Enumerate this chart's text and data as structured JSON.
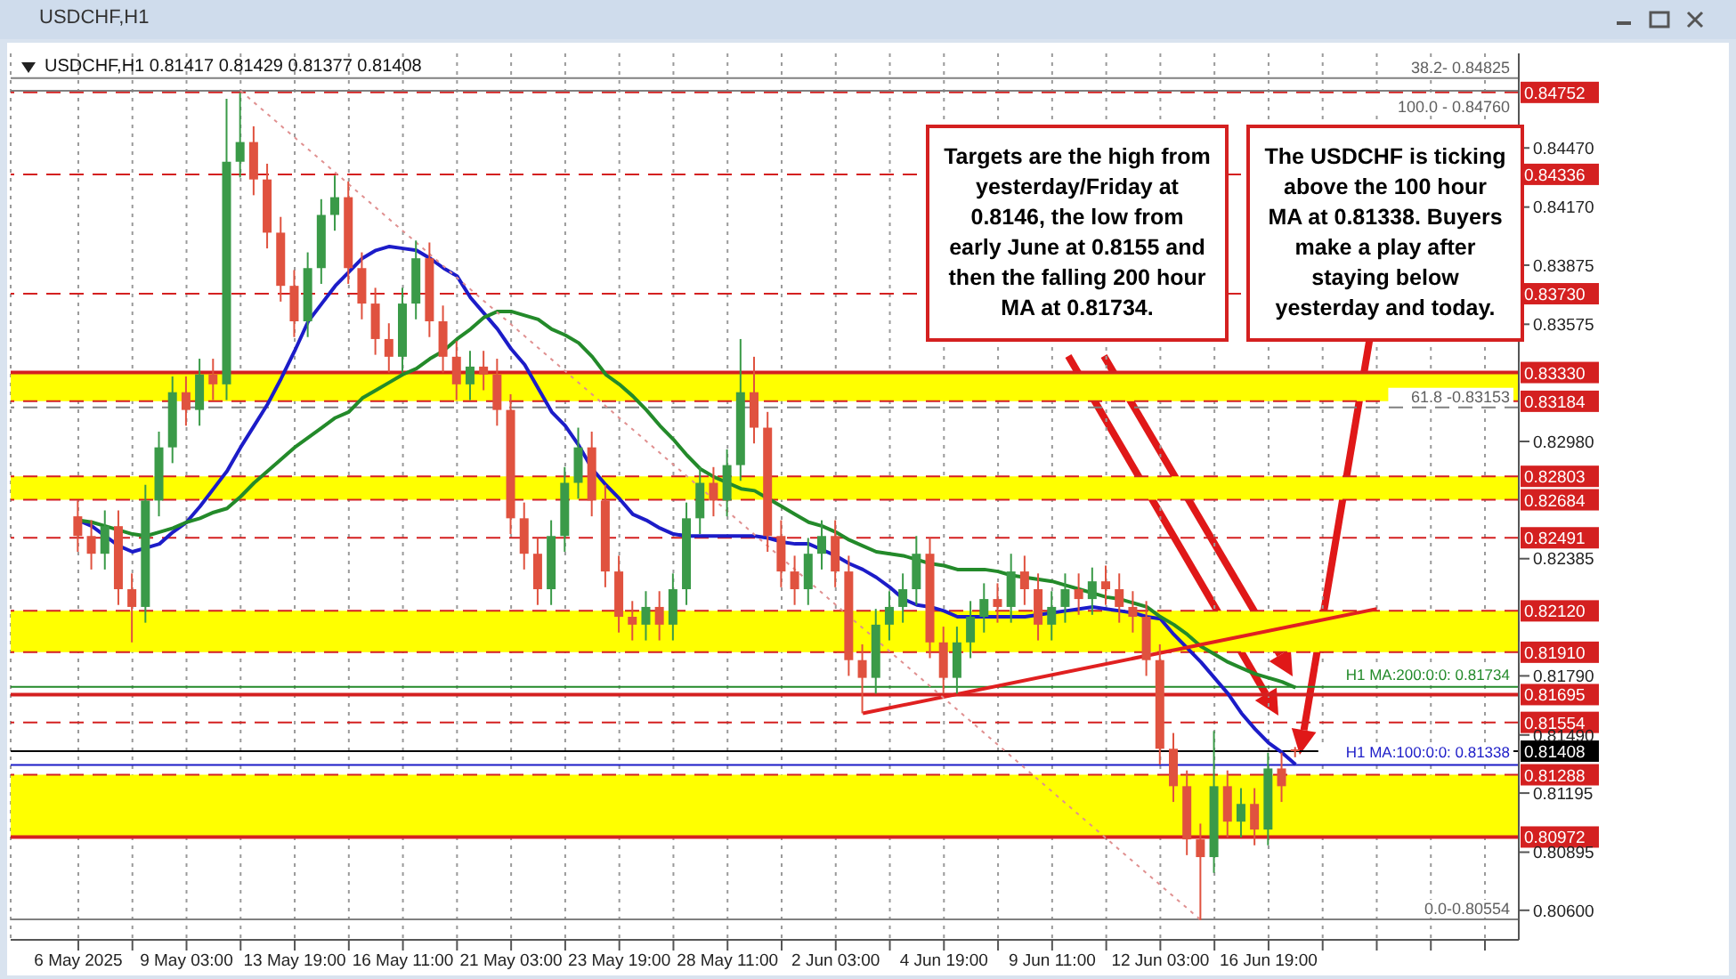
{
  "chart_data": {
    "type": "candlestick",
    "title": "USDCHF,H1 0.81417 0.81429 0.81377 0.81408",
    "subtitle": "USDCHF,H1",
    "categories": [
      "6 May 2025",
      null,
      null,
      null,
      null,
      null,
      null,
      null,
      "9 May 03:00",
      null,
      null,
      null,
      null,
      null,
      null,
      null,
      "13 May 19:00",
      null,
      null,
      null,
      null,
      null,
      null,
      null,
      "16 May 11:00",
      null,
      null,
      null,
      null,
      null,
      null,
      null,
      "21 May 03:00",
      null,
      null,
      null,
      null,
      null,
      null,
      null,
      "23 May 19:00",
      null,
      null,
      null,
      null,
      null,
      null,
      null,
      "28 May 11:00",
      null,
      null,
      null,
      null,
      null,
      null,
      null,
      "2 Jun 03:00",
      null,
      null,
      null,
      null,
      null,
      null,
      null,
      "4 Jun 19:00",
      null,
      null,
      null,
      null,
      null,
      null,
      null,
      "9 Jun 11:00",
      null,
      null,
      null,
      null,
      null,
      null,
      null,
      "12 Jun 03:00",
      null,
      null,
      null,
      null,
      null,
      null,
      null,
      "16 Jun 19:00",
      null,
      null,
      null,
      null,
      null,
      null,
      null,
      null,
      null,
      null,
      null,
      null,
      null,
      null,
      null,
      null,
      null,
      null
    ],
    "series": [
      {
        "colors": [
          "#e0523f",
          "#e0523f",
          "#3a9a48",
          "#e0523f",
          "#e0523f",
          "#3a9a48",
          "#3a9a48",
          "#3a9a48",
          "#e0523f",
          "#3a9a48",
          "#e0523f",
          "#3a9a48",
          "#3a9a48",
          "#e0523f",
          "#e0523f",
          "#e0523f",
          "#e0523f",
          "#3a9a48",
          "#3a9a48",
          "#3a9a48",
          "#e0523f",
          "#e0523f",
          "#e0523f",
          "#e0523f",
          "#3a9a48",
          "#3a9a48",
          "#e0523f",
          "#e0523f",
          "#e0523f",
          "#3a9a48",
          "#e0523f",
          "#e0523f",
          "#e0523f",
          "#e0523f",
          "#e0523f",
          "#3a9a48",
          "#3a9a48",
          "#3a9a48",
          "#e0523f",
          "#e0523f",
          "#e0523f",
          "#e0523f",
          "#3a9a48",
          "#e0523f",
          "#3a9a48",
          "#3a9a48",
          "#3a9a48",
          "#e0523f",
          "#3a9a48",
          "#3a9a48",
          "#e0523f",
          "#e0523f",
          "#e0523f",
          "#e0523f",
          "#3a9a48",
          "#3a9a48",
          "#e0523f",
          "#e0523f",
          "#e0523f",
          "#3a9a48",
          "#3a9a48",
          "#3a9a48",
          "#3a9a48",
          "#e0523f",
          "#e0523f",
          "#3a9a48",
          "#3a9a48",
          "#3a9a48",
          "#e0523f",
          "#3a9a48",
          "#e0523f",
          "#e0523f",
          "#3a9a48",
          "#3a9a48",
          "#e0523f",
          "#3a9a48",
          "#e0523f",
          "#e0523f",
          "#e0523f",
          "#e0523f",
          "#e0523f",
          "#e0523f",
          "#e0523f",
          "#e0523f",
          "#3a9a48",
          "#e0523f",
          "#3a9a48",
          "#e0523f",
          "#3a9a48",
          "#e0523f",
          "#e0523f",
          null,
          null,
          null,
          null,
          null,
          null,
          null,
          null,
          null,
          null,
          null,
          null,
          null,
          null,
          null,
          null
        ],
        "ohlc": [
          [
            0.826,
            0.8268,
            0.8242,
            0.825
          ],
          [
            0.825,
            0.8258,
            0.8233,
            0.8241
          ],
          [
            0.8241,
            0.8263,
            0.8233,
            0.8255
          ],
          [
            0.8255,
            0.8263,
            0.8215,
            0.8223
          ],
          [
            0.8223,
            0.8231,
            0.8196,
            0.8214
          ],
          [
            0.8214,
            0.8276,
            0.8206,
            0.8268
          ],
          [
            0.8268,
            0.8303,
            0.826,
            0.8295
          ],
          [
            0.8295,
            0.8331,
            0.8287,
            0.8323
          ],
          [
            0.8323,
            0.8331,
            0.8306,
            0.8314
          ],
          [
            0.8314,
            0.834,
            0.8306,
            0.8332
          ],
          [
            0.8332,
            0.834,
            0.8319,
            0.8327
          ],
          [
            0.8327,
            0.8472,
            0.8319,
            0.844
          ],
          [
            0.844,
            0.8475,
            0.8432,
            0.845
          ],
          [
            0.845,
            0.8458,
            0.8423,
            0.8431
          ],
          [
            0.8431,
            0.8439,
            0.8396,
            0.8404
          ],
          [
            0.8404,
            0.8412,
            0.8369,
            0.8377
          ],
          [
            0.8377,
            0.8385,
            0.8351,
            0.8359
          ],
          [
            0.8359,
            0.8394,
            0.8351,
            0.8386
          ],
          [
            0.8386,
            0.8421,
            0.8378,
            0.8413
          ],
          [
            0.8413,
            0.8433,
            0.8405,
            0.8422
          ],
          [
            0.8422,
            0.843,
            0.8378,
            0.8386
          ],
          [
            0.8386,
            0.8394,
            0.836,
            0.8368
          ],
          [
            0.8368,
            0.8376,
            0.8342,
            0.835
          ],
          [
            0.835,
            0.8358,
            0.8333,
            0.8341
          ],
          [
            0.8341,
            0.8376,
            0.8333,
            0.8368
          ],
          [
            0.8368,
            0.84,
            0.836,
            0.8391
          ],
          [
            0.8391,
            0.8399,
            0.8351,
            0.8359
          ],
          [
            0.8359,
            0.8367,
            0.8333,
            0.8341
          ],
          [
            0.8341,
            0.8349,
            0.8319,
            0.8327
          ],
          [
            0.8327,
            0.8344,
            0.8319,
            0.8336
          ],
          [
            0.8336,
            0.8344,
            0.8324,
            0.8332
          ],
          [
            0.8332,
            0.834,
            0.8306,
            0.8314
          ],
          [
            0.8314,
            0.8322,
            0.8251,
            0.8259
          ],
          [
            0.8259,
            0.8267,
            0.8233,
            0.8241
          ],
          [
            0.8241,
            0.8249,
            0.8215,
            0.8223
          ],
          [
            0.8223,
            0.8258,
            0.8215,
            0.825
          ],
          [
            0.825,
            0.8285,
            0.8242,
            0.8277
          ],
          [
            0.8277,
            0.8305,
            0.8269,
            0.8295
          ],
          [
            0.8295,
            0.8303,
            0.826,
            0.8268
          ],
          [
            0.8268,
            0.8276,
            0.8224,
            0.8232
          ],
          [
            0.8232,
            0.824,
            0.8201,
            0.8209
          ],
          [
            0.8209,
            0.8217,
            0.8197,
            0.8205
          ],
          [
            0.8205,
            0.8222,
            0.8197,
            0.8214
          ],
          [
            0.8214,
            0.8222,
            0.8197,
            0.8205
          ],
          [
            0.8205,
            0.8231,
            0.8197,
            0.8223
          ],
          [
            0.8223,
            0.8267,
            0.8215,
            0.8259
          ],
          [
            0.8259,
            0.8285,
            0.8251,
            0.8277
          ],
          [
            0.8277,
            0.8285,
            0.826,
            0.8268
          ],
          [
            0.8268,
            0.8294,
            0.826,
            0.8286
          ],
          [
            0.8286,
            0.835,
            0.8278,
            0.8323
          ],
          [
            0.8323,
            0.8341,
            0.8297,
            0.8305
          ],
          [
            0.8305,
            0.8313,
            0.8242,
            0.825
          ],
          [
            0.825,
            0.8258,
            0.8224,
            0.8232
          ],
          [
            0.8232,
            0.824,
            0.8215,
            0.8223
          ],
          [
            0.8223,
            0.8249,
            0.8215,
            0.8241
          ],
          [
            0.8241,
            0.8258,
            0.8233,
            0.825
          ],
          [
            0.825,
            0.8258,
            0.8224,
            0.8232
          ],
          [
            0.8232,
            0.824,
            0.8179,
            0.8187
          ],
          [
            0.8187,
            0.8195,
            0.816,
            0.8178
          ],
          [
            0.8178,
            0.8213,
            0.817,
            0.8205
          ],
          [
            0.8205,
            0.8222,
            0.8197,
            0.8214
          ],
          [
            0.8214,
            0.8231,
            0.8206,
            0.8223
          ],
          [
            0.8223,
            0.825,
            0.8215,
            0.8241
          ],
          [
            0.8241,
            0.8249,
            0.8188,
            0.8196
          ],
          [
            0.8196,
            0.8204,
            0.817,
            0.8178
          ],
          [
            0.8178,
            0.8204,
            0.817,
            0.8196
          ],
          [
            0.8196,
            0.8217,
            0.8188,
            0.8209
          ],
          [
            0.8209,
            0.8226,
            0.8201,
            0.8218
          ],
          [
            0.8218,
            0.8226,
            0.8206,
            0.8214
          ],
          [
            0.8214,
            0.8241,
            0.8206,
            0.8232
          ],
          [
            0.8232,
            0.824,
            0.8215,
            0.8223
          ],
          [
            0.8223,
            0.8231,
            0.8197,
            0.8205
          ],
          [
            0.8205,
            0.8222,
            0.8197,
            0.8214
          ],
          [
            0.8214,
            0.8231,
            0.8206,
            0.8223
          ],
          [
            0.8223,
            0.8231,
            0.821,
            0.8218
          ],
          [
            0.8218,
            0.8234,
            0.821,
            0.8227
          ],
          [
            0.8227,
            0.8235,
            0.8215,
            0.8223
          ],
          [
            0.8223,
            0.8231,
            0.8206,
            0.8214
          ],
          [
            0.8214,
            0.8222,
            0.8201,
            0.8209
          ],
          [
            0.8209,
            0.8217,
            0.8179,
            0.8187
          ],
          [
            0.8187,
            0.8195,
            0.8134,
            0.8142
          ],
          [
            0.8142,
            0.815,
            0.8115,
            0.8123
          ],
          [
            0.8123,
            0.8131,
            0.8088,
            0.8096
          ],
          [
            0.8096,
            0.8104,
            0.8055,
            0.8087
          ],
          [
            0.8087,
            0.8151,
            0.8079,
            0.8123
          ],
          [
            0.8123,
            0.8131,
            0.8097,
            0.8105
          ],
          [
            0.8105,
            0.8122,
            0.8097,
            0.8114
          ],
          [
            0.8114,
            0.8122,
            0.8093,
            0.8101
          ],
          [
            0.8101,
            0.814,
            0.8093,
            0.8132
          ],
          [
            0.8132,
            0.814,
            0.8115,
            0.8123
          ],
          [
            0.81417,
            0.81429,
            0.81377,
            0.81408
          ],
          null,
          null,
          null,
          null,
          null,
          null,
          null,
          null,
          null,
          null,
          null,
          null,
          null,
          null,
          null,
          null
        ]
      },
      {
        "type": "line",
        "color": "#1c1cc8",
        "values": [
          0.8258,
          0.8255,
          0.825,
          0.8245,
          0.8242,
          0.8244,
          0.8246,
          0.8252,
          0.8257,
          0.8265,
          0.8274,
          0.8283,
          0.8295,
          0.8306,
          0.8317,
          0.833,
          0.8344,
          0.8359,
          0.8368,
          0.8377,
          0.8384,
          0.8391,
          0.8395,
          0.8397,
          0.8396,
          0.8395,
          0.8391,
          0.8386,
          0.8382,
          0.8371,
          0.8363,
          0.8355,
          0.8345,
          0.8337,
          0.8325,
          0.8313,
          0.8306,
          0.8296,
          0.8284,
          0.8276,
          0.8269,
          0.8261,
          0.8258,
          0.8254,
          0.8251,
          0.825,
          0.825,
          0.825,
          0.825,
          0.825,
          0.825,
          0.8249,
          0.8247,
          0.8246,
          0.8246,
          0.8243,
          0.824,
          0.8236,
          0.8233,
          0.8229,
          0.8224,
          0.8218,
          0.8215,
          0.8214,
          0.8212,
          0.8209,
          0.8209,
          0.8209,
          0.8209,
          0.8209,
          0.8209,
          0.821,
          0.8211,
          0.8212,
          0.8213,
          0.8214,
          0.8213,
          0.8212,
          0.8211,
          0.8209,
          0.8208,
          0.82,
          0.8193,
          0.8186,
          0.8178,
          0.817,
          0.816,
          0.8152,
          0.8145,
          0.814,
          0.8134,
          null,
          null,
          null,
          null,
          null,
          null,
          null,
          null,
          null,
          null,
          null,
          null,
          null,
          null,
          null,
          null
        ]
      },
      {
        "type": "line",
        "color": "#238a2a",
        "values": [
          0.8258,
          0.8257,
          0.8255,
          0.8253,
          0.8251,
          0.825,
          0.8252,
          0.8254,
          0.8257,
          0.8259,
          0.8262,
          0.8264,
          0.827,
          0.8277,
          0.8283,
          0.8289,
          0.8295,
          0.83,
          0.8305,
          0.831,
          0.8313,
          0.832,
          0.8324,
          0.8328,
          0.8332,
          0.8335,
          0.834,
          0.8344,
          0.835,
          0.8355,
          0.8361,
          0.8364,
          0.8364,
          0.8362,
          0.836,
          0.8355,
          0.8352,
          0.8348,
          0.8341,
          0.8332,
          0.8327,
          0.8321,
          0.8314,
          0.8306,
          0.8299,
          0.8291,
          0.8284,
          0.828,
          0.8277,
          0.8274,
          0.8273,
          0.8269,
          0.8265,
          0.8261,
          0.8257,
          0.8255,
          0.8252,
          0.8248,
          0.8245,
          0.8242,
          0.8241,
          0.824,
          0.8238,
          0.8236,
          0.8235,
          0.8233,
          0.8233,
          0.8233,
          0.8232,
          0.823,
          0.8229,
          0.8228,
          0.8227,
          0.8225,
          0.8223,
          0.8221,
          0.8219,
          0.8218,
          0.8216,
          0.8214,
          0.8209,
          0.8205,
          0.82,
          0.8194,
          0.819,
          0.8186,
          0.8183,
          0.818,
          0.8178,
          0.8176,
          0.8173,
          null,
          null,
          null,
          null,
          null,
          null,
          null,
          null,
          null,
          null,
          null,
          null,
          null,
          null,
          null,
          null
        ]
      },
      {
        "type": "line",
        "color": "#e02020",
        "values": [
          null,
          null,
          null,
          null,
          null,
          null,
          null,
          null,
          null,
          null,
          null,
          null,
          null,
          null,
          null,
          null,
          null,
          null,
          null,
          null,
          null,
          null,
          null,
          null,
          null,
          null,
          null,
          null,
          null,
          null,
          null,
          null,
          null,
          null,
          null,
          null,
          null,
          null,
          null,
          null,
          null,
          null,
          null,
          null,
          null,
          null,
          null,
          null,
          null,
          null,
          null,
          null,
          null,
          null,
          null,
          null,
          null,
          null,
          0.816,
          null,
          null,
          null,
          null,
          null,
          null,
          null,
          null,
          null,
          null,
          null,
          null,
          null,
          null,
          null,
          null,
          null,
          null,
          null,
          null,
          null,
          null,
          null,
          null,
          null,
          null,
          null,
          null,
          null,
          null,
          null,
          null,
          null,
          null,
          null,
          null,
          null,
          0.8213,
          null,
          null,
          null,
          null,
          null,
          null,
          null,
          null,
          null,
          null
        ]
      },
      {
        "type": "line",
        "color": "#e09090",
        "line_style": "dotted",
        "values": [
          null,
          null,
          null,
          null,
          null,
          null,
          null,
          null,
          null,
          null,
          null,
          null,
          0.8476,
          null,
          null,
          null,
          null,
          null,
          null,
          null,
          null,
          null,
          null,
          null,
          null,
          null,
          null,
          null,
          null,
          null,
          null,
          null,
          null,
          null,
          null,
          null,
          null,
          null,
          null,
          null,
          null,
          null,
          null,
          null,
          null,
          null,
          null,
          null,
          null,
          null,
          null,
          null,
          null,
          null,
          null,
          null,
          null,
          null,
          null,
          null,
          null,
          null,
          null,
          null,
          null,
          null,
          null,
          null,
          null,
          null,
          null,
          null,
          null,
          null,
          null,
          null,
          null,
          null,
          null,
          null,
          null,
          null,
          null,
          0.8055,
          null,
          null,
          null,
          null,
          null,
          null,
          null,
          null,
          null,
          null,
          null,
          null,
          null,
          null,
          null,
          null,
          null,
          null,
          null,
          null,
          null,
          null,
          null
        ]
      }
    ],
    "ylim": [
      0.8045,
      0.8495
    ],
    "yticks": [
      {
        "value": 0.8447,
        "label": "0.84470"
      },
      {
        "value": 0.8417,
        "label": "0.84170"
      },
      {
        "value": 0.83875,
        "label": "0.83875"
      },
      {
        "value": 0.83575,
        "label": "0.83575"
      },
      {
        "value": 0.8298,
        "label": "0.82980"
      },
      {
        "value": 0.82385,
        "label": "0.82385"
      },
      {
        "value": 0.8179,
        "label": "0.81790"
      },
      {
        "value": 0.8149,
        "label": "0.81490"
      },
      {
        "value": 0.81195,
        "label": "0.81195"
      },
      {
        "value": 0.80895,
        "label": "0.80895"
      },
      {
        "value": 0.806,
        "label": "0.80600"
      }
    ],
    "grid": "x",
    "bands": [
      {
        "axis": "y",
        "from": 0.83184,
        "to": 0.8333,
        "color": "#ffff00"
      },
      {
        "axis": "y",
        "from": 0.82684,
        "to": 0.82803,
        "color": "#ffff00"
      },
      {
        "axis": "y",
        "from": 0.8191,
        "to": 0.8212,
        "color": "#ffff00"
      },
      {
        "axis": "y",
        "from": 0.80972,
        "to": 0.81288,
        "color": "#ffff00"
      }
    ],
    "ref_lines": [
      {
        "axis": "y",
        "value": 0.84752,
        "label": "0.84752",
        "color": "#d42020",
        "line_style": "dashed"
      },
      {
        "axis": "y",
        "value": 0.84336,
        "label": "0.84336",
        "color": "#d42020",
        "line_style": "dashed"
      },
      {
        "axis": "y",
        "value": 0.8373,
        "label": "0.83730",
        "color": "#d42020",
        "line_style": "dashed"
      },
      {
        "axis": "y",
        "value": 0.8333,
        "label": "0.83330",
        "color": "#d42020",
        "line_style": "solid"
      },
      {
        "axis": "y",
        "value": 0.83184,
        "label": "0.83184",
        "color": "#d42020",
        "line_style": "dashed"
      },
      {
        "axis": "y",
        "value": 0.82803,
        "label": "0.82803",
        "color": "#d42020",
        "line_style": "dashed"
      },
      {
        "axis": "y",
        "value": 0.82684,
        "label": "0.82684",
        "color": "#d42020",
        "line_style": "dashed"
      },
      {
        "axis": "y",
        "value": 0.82491,
        "label": "0.82491",
        "color": "#d42020",
        "line_style": "dashed"
      },
      {
        "axis": "y",
        "value": 0.8212,
        "label": "0.82120",
        "color": "#d42020",
        "line_style": "dashed"
      },
      {
        "axis": "y",
        "value": 0.8191,
        "label": "0.81910",
        "color": "#d42020",
        "line_style": "dashed"
      },
      {
        "axis": "y",
        "value": 0.81695,
        "label": "0.81695",
        "color": "#d42020",
        "line_style": "solid"
      },
      {
        "axis": "y",
        "value": 0.81554,
        "label": "0.81554",
        "color": "#d42020",
        "line_style": "dashed"
      },
      {
        "axis": "y",
        "value": 0.81288,
        "label": "0.81288",
        "color": "#d42020",
        "line_style": "dashed"
      },
      {
        "axis": "y",
        "value": 0.80972,
        "label": "0.80972",
        "color": "#d42020",
        "line_style": "solid"
      },
      {
        "axis": "y",
        "value": 0.81408,
        "label": "0.81408",
        "color": "#000000",
        "line_style": "solid"
      },
      {
        "axis": "y",
        "value": 0.81734,
        "label": "H1 MA:200:0:0: 0.81734",
        "color": "#238a2a",
        "line_style": "solid"
      },
      {
        "axis": "y",
        "value": 0.81338,
        "label": "H1 MA:100:0:0: 0.81338",
        "color": "#1c1cc8",
        "line_style": "solid"
      },
      {
        "axis": "y",
        "value": 0.84825,
        "color": "#808080",
        "line_style": "solid"
      },
      {
        "axis": "y",
        "value": 0.8476,
        "color": "#808080",
        "line_style": "solid"
      },
      {
        "axis": "y",
        "value": 0.83153,
        "color": "#808080",
        "line_style": "dashed"
      },
      {
        "axis": "y",
        "value": 0.80554,
        "color": "#808080",
        "line_style": "solid"
      }
    ],
    "annotations": [
      "Targets are the high from yesterday/Friday at 0.8146, the low from early June at 0.8155 and then the falling 200 hour MA at 0.81734.",
      "The USDCHF is ticking above the 100 hour MA at 0.81338.  Buyers make a play after staying below yesterday and today.",
      {
        "text": "38.2- 0.84825",
        "y": 0.84825
      },
      {
        "text": "100.0 - 0.84760",
        "y": 0.8476
      },
      {
        "text": "61.8 -0.83153",
        "y": 0.83153
      },
      {
        "text": "0.0-0.80554",
        "y": 0.80554
      }
    ]
  }
}
